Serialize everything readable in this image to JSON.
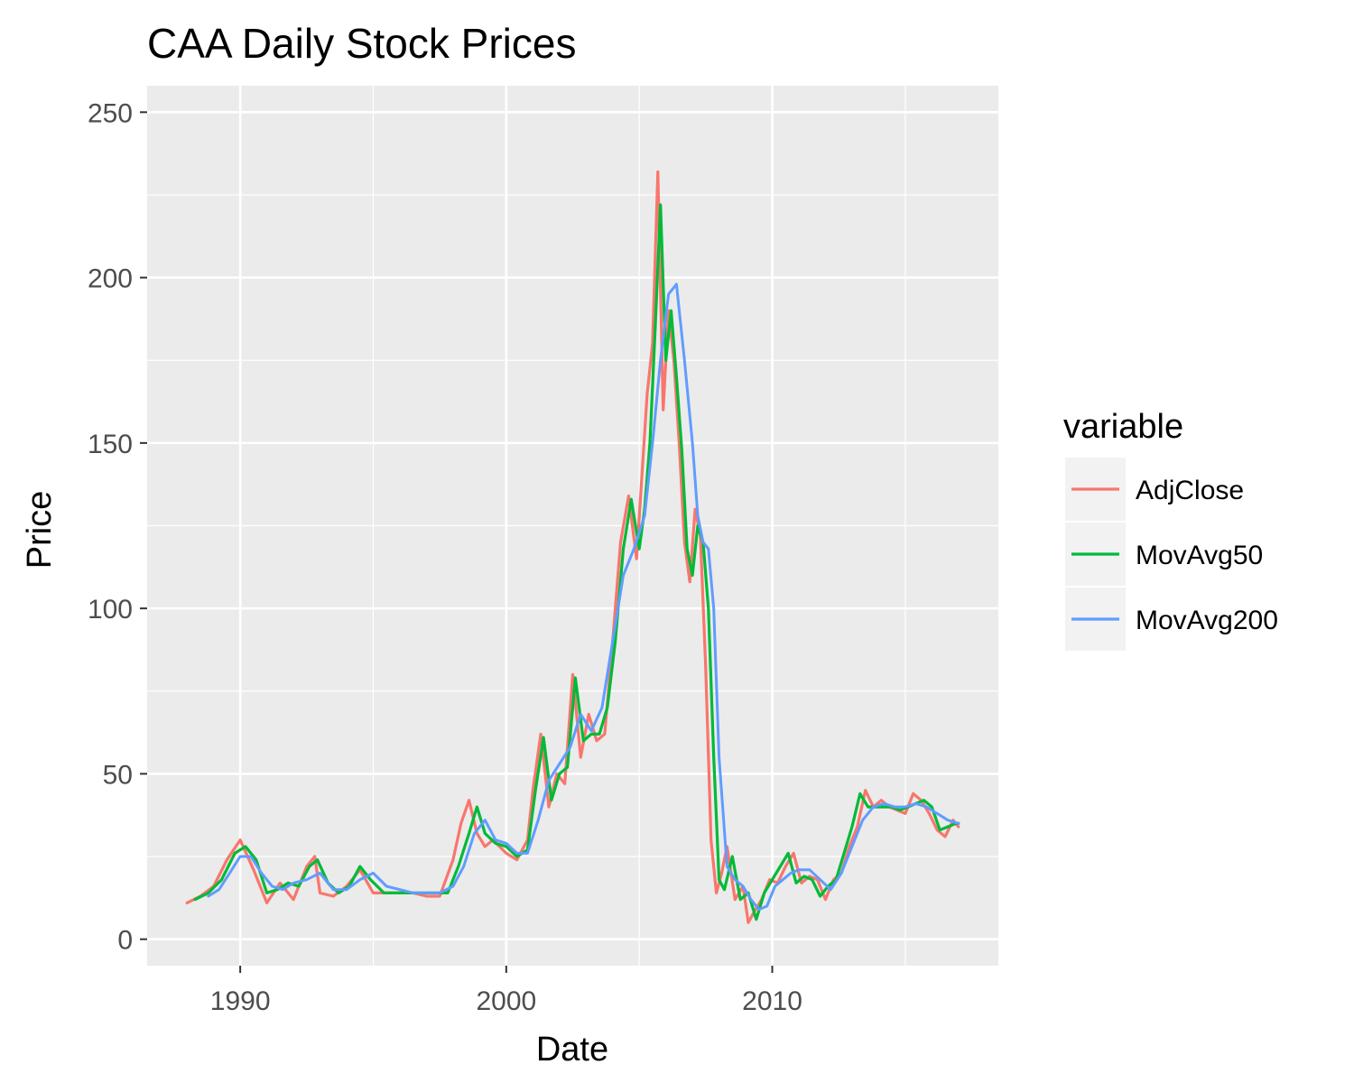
{
  "chart_data": {
    "type": "line",
    "title": "CAA Daily Stock Prices",
    "xlabel": "Date",
    "ylabel": "Price",
    "xlim": [
      1986.5,
      2018.5
    ],
    "ylim": [
      -8,
      258
    ],
    "x_ticks": [
      1990,
      2000,
      2010
    ],
    "x_tick_labels": [
      "1990",
      "2000",
      "2010"
    ],
    "y_ticks": [
      0,
      50,
      100,
      150,
      200,
      250
    ],
    "y_tick_labels": [
      "0",
      "50",
      "100",
      "150",
      "200",
      "250"
    ],
    "grid": true,
    "legend": {
      "title": "variable",
      "position": "right"
    },
    "series": [
      {
        "name": "AdjClose",
        "color": "#F8766D",
        "x": [
          1988.0,
          1988.5,
          1989.0,
          1989.5,
          1990.0,
          1990.5,
          1991.0,
          1991.5,
          1992.0,
          1992.5,
          1992.8,
          1993.0,
          1993.5,
          1994.0,
          1994.5,
          1995.0,
          1995.5,
          1996.0,
          1996.5,
          1997.0,
          1997.5,
          1998.0,
          1998.3,
          1998.6,
          1998.9,
          1999.2,
          1999.5,
          2000.0,
          2000.4,
          2000.8,
          2001.0,
          2001.3,
          2001.6,
          2001.9,
          2002.2,
          2002.5,
          2002.8,
          2003.1,
          2003.4,
          2003.7,
          2004.0,
          2004.3,
          2004.6,
          2004.9,
          2005.1,
          2005.3,
          2005.5,
          2005.7,
          2005.9,
          2006.1,
          2006.3,
          2006.5,
          2006.7,
          2006.9,
          2007.1,
          2007.3,
          2007.5,
          2007.7,
          2007.9,
          2008.1,
          2008.3,
          2008.6,
          2008.9,
          2009.1,
          2009.3,
          2009.6,
          2009.9,
          2010.2,
          2010.5,
          2010.8,
          2011.1,
          2011.4,
          2011.7,
          2012.0,
          2012.3,
          2012.6,
          2012.9,
          2013.2,
          2013.5,
          2013.8,
          2014.1,
          2014.4,
          2014.7,
          2015.0,
          2015.3,
          2015.6,
          2015.9,
          2016.2,
          2016.5,
          2016.8,
          2017.0
        ],
        "y": [
          11,
          13,
          16,
          24,
          30,
          21,
          11,
          17,
          12,
          22,
          25,
          14,
          13,
          16,
          21,
          14,
          14,
          14,
          14,
          13,
          13,
          24,
          35,
          42,
          32,
          28,
          30,
          26,
          24,
          30,
          45,
          62,
          40,
          50,
          47,
          80,
          55,
          68,
          60,
          62,
          90,
          120,
          134,
          115,
          140,
          165,
          180,
          232,
          160,
          190,
          175,
          150,
          120,
          108,
          130,
          122,
          82,
          30,
          14,
          20,
          28,
          12,
          16,
          5,
          8,
          12,
          18,
          17,
          22,
          26,
          17,
          19,
          18,
          12,
          18,
          20,
          28,
          34,
          45,
          40,
          42,
          40,
          39,
          38,
          44,
          42,
          38,
          33,
          31,
          36,
          34
        ]
      },
      {
        "name": "MovAvg50",
        "color": "#00BA38",
        "x": [
          1988.3,
          1988.8,
          1989.3,
          1989.8,
          1990.2,
          1990.6,
          1991.0,
          1991.4,
          1991.8,
          1992.2,
          1992.6,
          1992.9,
          1993.3,
          1993.7,
          1994.1,
          1994.5,
          1994.9,
          1995.4,
          1996.0,
          1996.6,
          1997.2,
          1997.8,
          1998.2,
          1998.6,
          1998.9,
          1999.2,
          1999.6,
          2000.0,
          2000.4,
          2000.8,
          2001.1,
          2001.4,
          2001.7,
          2002.0,
          2002.3,
          2002.6,
          2002.9,
          2003.2,
          2003.5,
          2003.8,
          2004.1,
          2004.4,
          2004.7,
          2005.0,
          2005.2,
          2005.4,
          2005.6,
          2005.8,
          2006.0,
          2006.2,
          2006.4,
          2006.6,
          2006.8,
          2007.0,
          2007.2,
          2007.4,
          2007.6,
          2007.8,
          2008.0,
          2008.2,
          2008.5,
          2008.8,
          2009.1,
          2009.4,
          2009.7,
          2010.0,
          2010.3,
          2010.6,
          2010.9,
          2011.2,
          2011.5,
          2011.8,
          2012.1,
          2012.4,
          2012.7,
          2013.0,
          2013.3,
          2013.6,
          2013.9,
          2014.2,
          2014.5,
          2014.8,
          2015.1,
          2015.4,
          2015.7,
          2016.0,
          2016.3,
          2016.6,
          2016.9,
          2017.0
        ],
        "y": [
          12,
          14,
          18,
          26,
          28,
          24,
          14,
          15,
          17,
          16,
          22,
          24,
          17,
          14,
          16,
          22,
          18,
          14,
          14,
          14,
          14,
          14,
          22,
          32,
          40,
          32,
          29,
          28,
          25,
          27,
          45,
          61,
          42,
          50,
          52,
          79,
          60,
          62,
          62,
          70,
          90,
          118,
          133,
          118,
          130,
          150,
          185,
          222,
          175,
          190,
          170,
          148,
          118,
          110,
          125,
          120,
          100,
          55,
          18,
          15,
          25,
          12,
          14,
          6,
          14,
          18,
          22,
          26,
          17,
          19,
          18,
          13,
          16,
          18,
          26,
          34,
          44,
          40,
          40,
          40,
          40,
          39,
          40,
          41,
          42,
          40,
          33,
          34,
          35,
          35
        ]
      },
      {
        "name": "MovAvg200",
        "color": "#619CFF",
        "x": [
          1988.8,
          1989.2,
          1989.6,
          1990.0,
          1990.4,
          1990.8,
          1991.2,
          1991.6,
          1992.0,
          1992.5,
          1993.0,
          1993.5,
          1994.0,
          1994.5,
          1995.0,
          1995.5,
          1996.0,
          1996.5,
          1997.0,
          1997.5,
          1998.0,
          1998.4,
          1998.8,
          1999.2,
          1999.6,
          2000.0,
          2000.4,
          2000.8,
          2001.2,
          2001.6,
          2002.0,
          2002.4,
          2002.8,
          2003.2,
          2003.6,
          2004.0,
          2004.4,
          2004.8,
          2005.2,
          2005.5,
          2005.8,
          2006.1,
          2006.4,
          2006.7,
          2007.0,
          2007.2,
          2007.4,
          2007.6,
          2007.8,
          2008.0,
          2008.3,
          2008.6,
          2008.9,
          2009.2,
          2009.5,
          2009.8,
          2010.1,
          2010.4,
          2010.7,
          2011.0,
          2011.4,
          2011.8,
          2012.2,
          2012.6,
          2013.0,
          2013.4,
          2013.8,
          2014.2,
          2014.6,
          2015.0,
          2015.4,
          2015.8,
          2016.2,
          2016.6,
          2017.0
        ],
        "y": [
          13,
          15,
          20,
          25,
          25,
          20,
          16,
          15,
          17,
          18,
          20,
          15,
          15,
          18,
          20,
          16,
          15,
          14,
          14,
          14,
          16,
          22,
          32,
          36,
          30,
          29,
          26,
          26,
          36,
          48,
          53,
          58,
          68,
          63,
          70,
          90,
          110,
          118,
          128,
          150,
          175,
          195,
          198,
          175,
          150,
          128,
          120,
          118,
          100,
          55,
          22,
          18,
          16,
          12,
          9,
          10,
          16,
          18,
          20,
          21,
          21,
          18,
          15,
          20,
          28,
          36,
          40,
          41,
          40,
          40,
          41,
          40,
          38,
          36,
          35
        ]
      }
    ]
  }
}
